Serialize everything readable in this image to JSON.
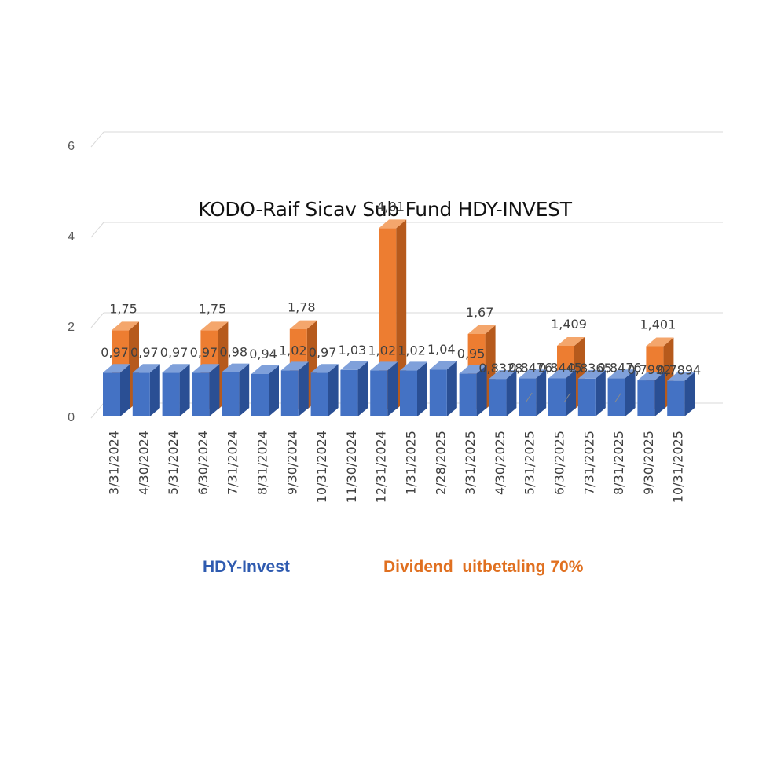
{
  "chart_data": {
    "type": "bar",
    "title": "KODO-Raif Sicav Sub Fund HDY-INVEST",
    "xlabel": "",
    "ylabel": "",
    "ylim": [
      0,
      6
    ],
    "yticks": [
      "0",
      "2",
      "4",
      "6"
    ],
    "grid": true,
    "legend_position": "bottom",
    "categories": [
      "3/31/2024",
      "4/30/2024",
      "5/31/2024",
      "6/30/2024",
      "7/31/2024",
      "8/31/2024",
      "9/30/2024",
      "10/31/2024",
      "11/30/2024",
      "12/31/2024",
      "1/31/2025",
      "2/28/2025",
      "3/31/2025",
      "4/30/2025",
      "5/31/2025",
      "6/30/2025",
      "7/31/2025",
      "8/31/2025",
      "9/30/2025",
      "10/31/2025"
    ],
    "series": [
      {
        "name": "HDY-Invest",
        "color": "#4472C4",
        "values": [
          0.97,
          0.97,
          0.97,
          0.97,
          0.98,
          0.94,
          1.02,
          0.97,
          1.03,
          1.02,
          1.02,
          1.04,
          0.95,
          0.8328,
          0.8476,
          0.8445,
          0.8365,
          0.8476,
          0.7992,
          0.7894
        ],
        "labels": [
          "0,97",
          "0,97",
          "0,97",
          "0,97",
          "0,98",
          "0,94",
          "1,02",
          "0,97",
          "1,03",
          "1,02",
          "1,02",
          "1,04",
          "0,95",
          "0,8328",
          "0,8476",
          "0,8445",
          "0,8365",
          "0,8476",
          "0,7992",
          "0,7894"
        ]
      },
      {
        "name": "Dividend  uitbetaling 70%",
        "color": "#ED7D31",
        "values": [
          1.75,
          null,
          null,
          1.75,
          null,
          null,
          1.78,
          null,
          null,
          4.01,
          null,
          null,
          1.67,
          null,
          null,
          1.409,
          null,
          null,
          1.401,
          null
        ],
        "labels": [
          "1,75",
          null,
          null,
          "1,75",
          null,
          null,
          "1,78",
          null,
          null,
          "4,01",
          null,
          null,
          "1,67",
          null,
          null,
          "1,409",
          null,
          null,
          "1,401",
          null
        ]
      }
    ]
  }
}
